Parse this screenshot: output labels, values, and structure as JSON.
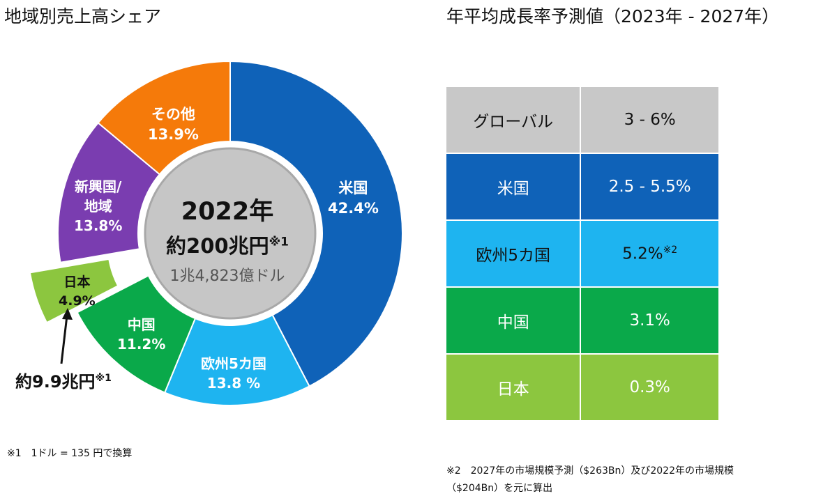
{
  "left_title": "地域別売上高シェア",
  "right_title": "年平均成長率予測値（2023年 - 2027年）",
  "chart_data": [
    {
      "type": "pie",
      "title": "地域別売上高シェア",
      "center": {
        "year": "2022年",
        "amount": "約200兆円",
        "amount_note": "※1",
        "dollar": "1兆4,823億ドル"
      },
      "slices": [
        {
          "name": "米国",
          "label": "米国",
          "value_label": "42.4%",
          "value": 42.4,
          "color": "#0f62b8"
        },
        {
          "name": "欧州5カ国",
          "label": "欧州5カ国",
          "value_label": "13.8 %",
          "value": 13.8,
          "color": "#1eb4f0"
        },
        {
          "name": "中国",
          "label": "中国",
          "value_label": "11.2%",
          "value": 11.2,
          "color": "#0aa94a"
        },
        {
          "name": "日本",
          "label": "日本",
          "value_label": "4.9%",
          "value": 4.9,
          "color": "#8cc63f"
        },
        {
          "name": "新興国/地域",
          "label": "新興国/",
          "label2": "地域",
          "value_label": "13.8%",
          "value": 13.8,
          "color": "#7a3db0"
        },
        {
          "name": "その他",
          "label": "その他",
          "value_label": "13.9%",
          "value": 13.9,
          "color": "#f57a0a"
        }
      ],
      "japan_amount": "約9.9兆円",
      "japan_amount_note": "※1"
    },
    {
      "type": "table",
      "title": "年平均成長率予測値（2023年 - 2027年）",
      "rows": [
        {
          "region": "グローバル",
          "rate": "3 - 6%",
          "note": "",
          "color": "#c8c8c8",
          "text_color": "#111111"
        },
        {
          "region": "米国",
          "rate": "2.5 - 5.5%",
          "note": "",
          "color": "#0f62b8",
          "text_color": "#ffffff"
        },
        {
          "region": "欧州5カ国",
          "rate": "5.2%",
          "note": "※2",
          "color": "#1eb4f0",
          "text_color": "#111111"
        },
        {
          "region": "中国",
          "rate": "3.1%",
          "note": "",
          "color": "#0aa94a",
          "text_color": "#ffffff"
        },
        {
          "region": "日本",
          "rate": "0.3%",
          "note": "",
          "color": "#8cc63f",
          "text_color": "#ffffff"
        }
      ]
    }
  ],
  "notes": {
    "note1": "※1　1ドル = 135 円で換算",
    "note2_line1": "※2　2027年の市場規模予測（$263Bn）及び2022年の市場規模",
    "note2_line2": "（$204Bn）を元に算出"
  }
}
